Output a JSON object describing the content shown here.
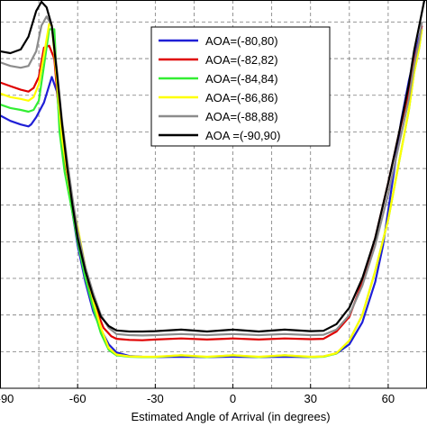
{
  "chart_data": {
    "type": "line",
    "title": "",
    "xlabel": "Estimated Angle of Arrival (in degrees)",
    "ylabel": "",
    "xlim": [
      -90,
      75
    ],
    "ylim": [
      0,
      10.6
    ],
    "grid": true,
    "legend_position": "top-right",
    "x_ticks": [
      -90,
      -60,
      -30,
      0,
      30,
      60
    ],
    "x_tick_labels": [
      "-90",
      "-60",
      "-30",
      "0",
      "30",
      "60"
    ],
    "series": [
      {
        "name": "AOA=(-80,80)",
        "color": "#1f1fd6",
        "x": [
          -90,
          -86,
          -82,
          -79,
          -78,
          -76,
          -73,
          -70,
          -68,
          -66,
          -64,
          -62,
          -60,
          -57,
          -54,
          -51,
          -48,
          -45,
          -40,
          -35,
          -30,
          -20,
          -10,
          0,
          10,
          20,
          30,
          35,
          40,
          45,
          50,
          55,
          58,
          62,
          65,
          68,
          70,
          72,
          73
        ],
        "y": [
          7.45,
          7.3,
          7.2,
          7.15,
          7.2,
          7.4,
          7.8,
          8.5,
          8.1,
          7.0,
          5.9,
          4.8,
          3.9,
          2.9,
          2.1,
          1.6,
          1.2,
          0.98,
          0.88,
          0.86,
          0.85,
          0.86,
          0.85,
          0.86,
          0.85,
          0.86,
          0.85,
          0.87,
          0.95,
          1.2,
          1.8,
          2.9,
          3.9,
          5.8,
          7.3,
          8.4,
          9.0,
          9.6,
          9.9
        ]
      },
      {
        "name": "AOA=(-82,82)",
        "color": "#e00000",
        "x": [
          -90,
          -86,
          -82,
          -79,
          -77,
          -75,
          -73,
          -71,
          -69,
          -67,
          -65,
          -62,
          -60,
          -57,
          -55,
          -52,
          -50,
          -47,
          -45,
          -40,
          -35,
          -30,
          -20,
          -10,
          0,
          10,
          20,
          30,
          35,
          40,
          45,
          50,
          55,
          60,
          64,
          68,
          70,
          72,
          73
        ],
        "y": [
          8.35,
          8.25,
          8.15,
          8.1,
          8.2,
          8.5,
          9.3,
          9.35,
          9.0,
          7.3,
          6.2,
          5.1,
          4.3,
          3.3,
          2.6,
          2.0,
          1.65,
          1.42,
          1.35,
          1.32,
          1.31,
          1.33,
          1.36,
          1.33,
          1.36,
          1.33,
          1.36,
          1.34,
          1.35,
          1.55,
          1.95,
          2.9,
          4.1,
          5.6,
          6.9,
          8.1,
          8.9,
          9.5,
          9.9
        ]
      },
      {
        "name": "AOA=(-84,84)",
        "color": "#33ee33",
        "x": [
          -90,
          -86,
          -82,
          -79,
          -77,
          -75,
          -73,
          -71,
          -69,
          -67,
          -65,
          -62,
          -60,
          -57,
          -54,
          -51,
          -48,
          -45,
          -40,
          -35,
          -30,
          -20,
          -10,
          0,
          10,
          20,
          30,
          35,
          40,
          45,
          50,
          55,
          60,
          64,
          68,
          70,
          72,
          73
        ],
        "y": [
          7.75,
          7.65,
          7.6,
          7.55,
          7.6,
          7.85,
          8.8,
          9.8,
          9.8,
          7.0,
          5.9,
          4.8,
          4.0,
          3.0,
          2.2,
          1.5,
          1.05,
          0.9,
          0.86,
          0.85,
          0.85,
          0.9,
          0.85,
          0.9,
          0.85,
          0.9,
          0.85,
          0.86,
          0.95,
          1.3,
          2.0,
          3.2,
          4.6,
          6.1,
          7.6,
          8.6,
          9.3,
          9.8
        ]
      },
      {
        "name": "AOA=(-86,86)",
        "color": "#ffff00",
        "x": [
          -90,
          -86,
          -82,
          -79,
          -77,
          -75,
          -73,
          -71,
          -70,
          -68,
          -66,
          -63,
          -60,
          -57,
          -54,
          -51,
          -48,
          -45,
          -40,
          -35,
          -30,
          -20,
          -10,
          0,
          10,
          20,
          30,
          35,
          40,
          45,
          50,
          55,
          60,
          64,
          68,
          70,
          72,
          73
        ],
        "y": [
          8.05,
          7.95,
          7.9,
          7.85,
          7.95,
          8.3,
          9.1,
          9.95,
          9.9,
          8.4,
          6.8,
          5.4,
          4.4,
          3.3,
          2.4,
          1.65,
          1.1,
          0.92,
          0.87,
          0.86,
          0.86,
          0.9,
          0.86,
          0.9,
          0.86,
          0.9,
          0.86,
          0.87,
          0.96,
          1.3,
          2.0,
          3.2,
          4.6,
          6.1,
          7.6,
          8.6,
          9.3,
          9.8
        ]
      },
      {
        "name": "AOA=(-88,88)",
        "color": "#8c8c8c",
        "x": [
          -90,
          -86,
          -82,
          -79,
          -76,
          -74,
          -72,
          -70,
          -68,
          -66,
          -64,
          -62,
          -60,
          -57,
          -54,
          -51,
          -48,
          -45,
          -40,
          -35,
          -30,
          -20,
          -10,
          0,
          10,
          20,
          30,
          35,
          40,
          45,
          50,
          55,
          60,
          64,
          68,
          70,
          72,
          73
        ],
        "y": [
          8.9,
          8.8,
          8.75,
          8.8,
          9.2,
          9.9,
          10.15,
          9.9,
          8.7,
          7.3,
          6.2,
          5.2,
          4.3,
          3.3,
          2.6,
          2.0,
          1.65,
          1.48,
          1.45,
          1.44,
          1.45,
          1.48,
          1.45,
          1.48,
          1.45,
          1.48,
          1.45,
          1.46,
          1.6,
          2.0,
          2.8,
          3.9,
          5.3,
          6.6,
          7.9,
          8.8,
          9.5,
          10.0
        ]
      },
      {
        "name": "AOA =(-90,90)",
        "color": "#000000",
        "x": [
          -90,
          -86,
          -82,
          -79,
          -76,
          -74,
          -72,
          -70,
          -68,
          -66,
          -64,
          -62,
          -60,
          -57,
          -54,
          -51,
          -48,
          -45,
          -40,
          -35,
          -30,
          -20,
          -10,
          0,
          10,
          20,
          30,
          35,
          40,
          45,
          50,
          55,
          60,
          64,
          68,
          70,
          72,
          74
        ],
        "y": [
          9.2,
          9.15,
          9.25,
          9.6,
          10.3,
          10.55,
          10.4,
          9.9,
          8.6,
          7.2,
          6.0,
          5.0,
          4.1,
          3.2,
          2.5,
          1.95,
          1.7,
          1.58,
          1.55,
          1.55,
          1.56,
          1.6,
          1.55,
          1.6,
          1.55,
          1.6,
          1.56,
          1.57,
          1.75,
          2.2,
          3.0,
          4.1,
          5.6,
          6.9,
          8.3,
          9.2,
          9.9,
          10.6
        ]
      }
    ]
  }
}
